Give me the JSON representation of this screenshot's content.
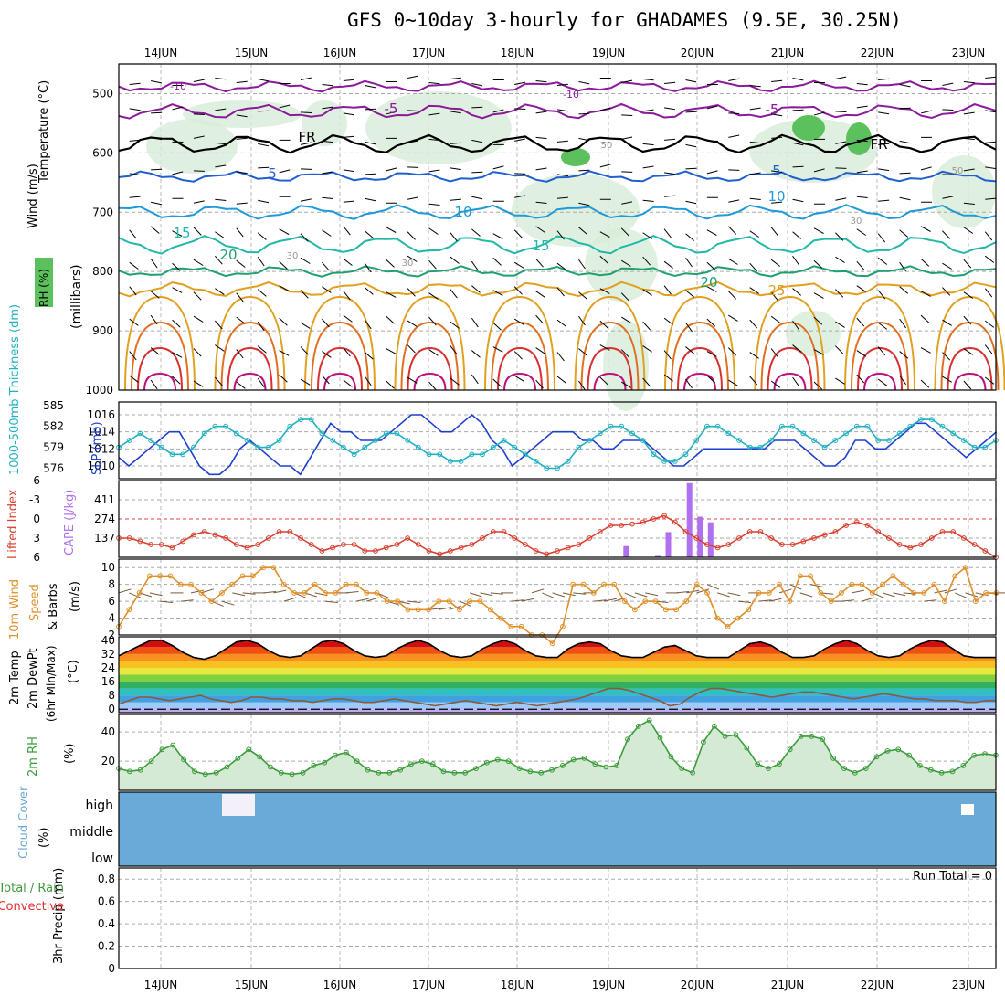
{
  "title": "GFS 0~10day 3-hourly for GHADAMES (9.5E, 30.25N)",
  "colors": {
    "dashed_grid": "#aaaaaa",
    "slp": "#1f3fcf",
    "thickness": "#22b0c0",
    "lifted": "#d84030",
    "cape": "#b070f0",
    "wind_speed": "#e0902a",
    "barbs": "#7a5a3a",
    "rh2m": "#3c9c3c",
    "cloud": "#6aaad8",
    "rh_shade": "#d8ecd8"
  },
  "chart_data": [
    {
      "type": "line",
      "panel": "upper-air",
      "days": [
        "14JUN",
        "15JUN",
        "16JUN",
        "17JUN",
        "18JUN",
        "19JUN",
        "20JUN",
        "21JUN",
        "22JUN",
        "23JUN"
      ],
      "ylabel_parts": [
        "Wind (m/s)",
        "Temperature (°C)",
        "RH (%)"
      ],
      "ylabel_units": "(millibars)",
      "yticks": [
        500,
        600,
        700,
        800,
        900,
        1000
      ],
      "ylim": [
        450,
        1000
      ],
      "isotherm_labels": [
        "-10",
        "-10",
        "-5",
        "-5",
        "FR",
        "FR",
        "5",
        "5",
        "10",
        "10",
        "15",
        "15",
        "20",
        "20",
        "25"
      ],
      "rh_labels": [
        "30",
        "30",
        "30",
        "50",
        "50"
      ],
      "isotherms": [
        {
          "label": "-10",
          "color": "#8a1a9a",
          "p": 488
        },
        {
          "label": "-5",
          "color": "#8a1a9a",
          "p": 530
        },
        {
          "label": "FR",
          "color": "#000000",
          "p": 585
        },
        {
          "label": "5",
          "color": "#1f5fcf",
          "p": 640
        },
        {
          "label": "10",
          "color": "#1f9ad8",
          "p": 700
        },
        {
          "label": "15",
          "color": "#22b8a8",
          "p": 755
        },
        {
          "label": "20",
          "color": "#20a070",
          "p": 800
        },
        {
          "label": "25",
          "color": "#e0a020",
          "p": 830
        }
      ]
    },
    {
      "type": "line",
      "panel": "slp-thickness",
      "ylabel": "1000-500mb Thickness (dm)",
      "ylabel2": "SLP (mb)",
      "yticks_left": [
        "585",
        "582",
        "579",
        "576"
      ],
      "yticks_right": [
        "1016",
        "1014",
        "1012",
        "1010"
      ],
      "ylim_slp": [
        1008.5,
        1017.5
      ],
      "ylim_thk": [
        574.5,
        585.5
      ],
      "series": [
        {
          "values": [
            1011,
            1010,
            1011,
            1012,
            1013,
            1014,
            1014,
            1012,
            1010,
            1009,
            1009,
            1010,
            1012,
            1013,
            1012,
            1011,
            1010,
            1010,
            1009,
            1011,
            1013,
            1015,
            1014,
            1014,
            1013,
            1013,
            1013,
            1014,
            1015,
            1016,
            1016,
            1015,
            1014,
            1014,
            1015,
            1016,
            1015,
            1013,
            1012,
            1010,
            1011,
            1012,
            1013,
            1014,
            1014,
            1014,
            1013,
            1013,
            1012,
            1012,
            1013,
            1013,
            1013,
            1012,
            1011,
            1010,
            1010,
            1011,
            1012,
            1012,
            1012,
            1012,
            1012,
            1012,
            1012,
            1013,
            1013,
            1013,
            1012,
            1011,
            1010,
            1010,
            1011,
            1013,
            1013,
            1012,
            1012,
            1013,
            1014,
            1015,
            1015,
            1014,
            1013,
            1012,
            1011,
            1012,
            1013,
            1014
          ]
        },
        {
          "values": [
            579,
            580,
            581,
            580,
            579,
            578,
            578,
            579,
            581,
            582,
            582,
            581,
            580,
            579,
            579,
            580,
            582,
            583,
            583,
            581,
            580,
            579,
            578,
            579,
            580,
            581,
            581,
            580,
            579,
            578,
            578,
            577,
            577,
            578,
            578,
            579,
            580,
            579,
            578,
            577,
            576,
            576,
            577,
            579,
            580,
            581,
            582,
            582,
            581,
            580,
            578,
            577,
            577,
            578,
            580,
            582,
            582,
            581,
            580,
            579,
            579,
            580,
            582,
            582,
            581,
            580,
            579,
            580,
            581,
            582,
            582,
            580,
            580,
            581,
            582,
            583,
            583,
            582,
            581,
            580,
            579,
            579,
            580
          ]
        }
      ]
    },
    {
      "type": "bar",
      "panel": "lifted-cape",
      "ylabel": "Lifted Index",
      "ylabel2": "CAPE (J/kg)",
      "yticks_left": [
        "-6",
        "-3",
        "0",
        "3",
        "6"
      ],
      "yticks_right": [
        "411",
        "274",
        "137"
      ],
      "ylim_li": [
        -6,
        6
      ],
      "ylim_cape": [
        0,
        548
      ],
      "series": [
        {
          "values": [
            3,
            3,
            3.5,
            4,
            4,
            4.5,
            3.5,
            2.5,
            2,
            2.5,
            3,
            4,
            4.5,
            4,
            3,
            2,
            2,
            3,
            4,
            5,
            4.5,
            4,
            4,
            5,
            5,
            4.5,
            4,
            3,
            4,
            5,
            5.5,
            5,
            4.5,
            4,
            3,
            2,
            2,
            3,
            4,
            5,
            5.5,
            5,
            4.5,
            4,
            3,
            2,
            1,
            1,
            0.8,
            0.5,
            0,
            -0.5,
            0.5,
            2,
            3,
            4,
            4.5,
            4,
            3,
            2,
            2,
            3,
            4,
            4,
            3.5,
            3,
            2.5,
            2,
            1,
            0.5,
            1,
            2,
            3,
            4,
            4.5,
            4,
            3,
            2,
            2,
            3,
            4,
            5,
            6
          ]
        },
        {
          "values": [
            0,
            0,
            0,
            0,
            0,
            0,
            0,
            0,
            0,
            0,
            0,
            0,
            0,
            0,
            0,
            0,
            0,
            0,
            0,
            0,
            0,
            0,
            0,
            0,
            0,
            0,
            0,
            0,
            0,
            0,
            0,
            0,
            0,
            0,
            0,
            0,
            0,
            0,
            0,
            0,
            0,
            0,
            0,
            0,
            0,
            0,
            0,
            0,
            80,
            0,
            0,
            10,
            180,
            0,
            530,
            290,
            250,
            0,
            0,
            0,
            0,
            0,
            0,
            0,
            0,
            0,
            0,
            0,
            0,
            0,
            0,
            0,
            0,
            0,
            0,
            0,
            0,
            0,
            0,
            0,
            0,
            0,
            0,
            0
          ]
        }
      ]
    },
    {
      "type": "line",
      "panel": "wind10m",
      "ylabel_parts": [
        "10m Wind",
        "Speed",
        "& Barbs"
      ],
      "ylabel_units": "(m/s)",
      "yticks": [
        "10",
        "8",
        "6",
        "4",
        "2"
      ],
      "ylim": [
        2,
        11
      ],
      "series": [
        {
          "values": [
            3,
            5,
            7,
            9,
            9,
            9,
            8,
            8,
            7,
            6,
            7,
            8,
            9,
            9,
            10,
            10,
            8,
            7,
            7,
            8,
            7,
            7,
            8,
            8,
            7,
            7,
            6,
            6,
            5,
            5,
            5,
            6,
            6,
            5,
            6,
            6,
            5,
            4,
            3,
            3,
            2,
            2,
            1,
            3,
            8,
            8,
            7,
            8,
            8,
            6,
            5,
            6,
            6,
            5,
            5,
            6,
            8,
            7,
            4,
            3,
            4,
            5,
            7,
            7,
            8,
            6,
            9,
            9,
            7,
            6,
            7,
            8,
            8,
            7,
            8,
            9,
            8,
            7,
            7,
            8,
            6,
            9,
            10,
            6,
            7,
            7
          ]
        },
        {
          "values": [
            7,
            7,
            7,
            7,
            6,
            7,
            6,
            7,
            7,
            6,
            6,
            7,
            7,
            7,
            7,
            7,
            6,
            7,
            7,
            7,
            6,
            7,
            7,
            6,
            6,
            7,
            6,
            6,
            6,
            5,
            5,
            5,
            5,
            6,
            7,
            7,
            7,
            7,
            6,
            6,
            7,
            7,
            7,
            7,
            7,
            7,
            6,
            6,
            6,
            7,
            7,
            7,
            6,
            7,
            7,
            7,
            7,
            8,
            7,
            7,
            6,
            7,
            6,
            6,
            7,
            8,
            7,
            8,
            7,
            6,
            6,
            7,
            6,
            7,
            7,
            7,
            7,
            7,
            6,
            7,
            7,
            7,
            7,
            7,
            7,
            7
          ]
        }
      ]
    },
    {
      "type": "area",
      "panel": "temp2m",
      "ylabel_parts": [
        "2m Temp",
        "2m DewPt",
        "(6hr Min/Max)"
      ],
      "ylabel_units": "(°C)",
      "yticks": [
        "40",
        "32",
        "24",
        "16",
        "8",
        "0"
      ],
      "ylim": [
        -2,
        42
      ],
      "series": [
        {
          "values": [
            31,
            34,
            37,
            40,
            40,
            37,
            33,
            30,
            29,
            31,
            35,
            39,
            40,
            38,
            34,
            31,
            30,
            31,
            35,
            39,
            40,
            38,
            34,
            31,
            30,
            31,
            35,
            38,
            40,
            38,
            34,
            31,
            30,
            31,
            35,
            38,
            40,
            38,
            34,
            31,
            30,
            30,
            35,
            38,
            39,
            38,
            34,
            31,
            30,
            30,
            33,
            36,
            37,
            34,
            31,
            30,
            30,
            30,
            34,
            38,
            39,
            37,
            33,
            30,
            30,
            31,
            35,
            38,
            40,
            38,
            34,
            31,
            30,
            31,
            35,
            38,
            40,
            39,
            35,
            31,
            30,
            30,
            30
          ]
        },
        {
          "values": [
            3,
            5,
            7,
            7,
            6,
            5,
            6,
            7,
            8,
            6,
            5,
            4,
            5,
            7,
            7,
            6,
            6,
            5,
            5,
            4,
            5,
            6,
            6,
            5,
            4,
            4,
            5,
            6,
            5,
            4,
            3,
            2,
            3,
            4,
            5,
            4,
            3,
            2,
            3,
            4,
            3,
            2,
            3,
            4,
            5,
            6,
            8,
            10,
            12,
            12,
            11,
            9,
            7,
            5,
            2,
            3,
            7,
            10,
            12,
            12,
            11,
            10,
            9,
            8,
            7,
            8,
            9,
            10,
            10,
            9,
            8,
            7,
            6,
            7,
            8,
            9,
            8,
            7,
            6,
            6,
            5,
            5,
            5,
            4,
            4,
            5,
            5
          ]
        }
      ]
    },
    {
      "type": "area",
      "panel": "rh2m",
      "ylabel": "2m RH",
      "ylabel_units": "(%)",
      "yticks": [
        "40",
        "20"
      ],
      "ylim": [
        0,
        52
      ],
      "series": [
        {
          "values": [
            15,
            13,
            14,
            20,
            28,
            31,
            21,
            13,
            11,
            12,
            16,
            22,
            28,
            23,
            16,
            12,
            11,
            12,
            17,
            19,
            24,
            26,
            20,
            14,
            12,
            12,
            14,
            18,
            20,
            18,
            13,
            12,
            12,
            15,
            19,
            21,
            20,
            15,
            13,
            12,
            14,
            17,
            21,
            22,
            18,
            16,
            17,
            35,
            44,
            48,
            36,
            23,
            15,
            12,
            33,
            44,
            37,
            38,
            29,
            18,
            15,
            18,
            28,
            37,
            37,
            35,
            22,
            15,
            12,
            15,
            23,
            27,
            28,
            24,
            17,
            14,
            12,
            13,
            17,
            24,
            25,
            24
          ]
        }
      ]
    },
    {
      "type": "bar",
      "panel": "cloud",
      "ylabel": "Cloud Cover",
      "ylabel_units": "(%)",
      "levels": [
        "high",
        "middle",
        "low"
      ]
    },
    {
      "type": "bar",
      "panel": "precip",
      "ylabel": "3hr Precip (mm)",
      "legend_parts": [
        "Total / Rain",
        "Convective"
      ],
      "yticks": [
        "0.8",
        "0.6",
        "0.4",
        "0.2",
        "0"
      ],
      "ylim": [
        0,
        0.9
      ],
      "run_total": "Run Total = 0"
    }
  ]
}
